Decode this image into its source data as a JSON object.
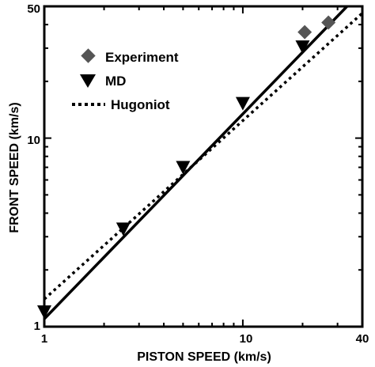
{
  "chart_data": {
    "type": "scatter",
    "xscale": "log",
    "yscale": "log",
    "xlim": [
      1,
      40
    ],
    "ylim": [
      1,
      50
    ],
    "xlabel": "PISTON SPEED (km/s)",
    "ylabel": "FRONT SPEED (km/s)",
    "x_ticks": [
      1,
      10,
      40
    ],
    "y_ticks": [
      1,
      10,
      50
    ],
    "grid": false,
    "legend_position": "top-left",
    "series": [
      {
        "name": "Experiment",
        "kind": "points",
        "marker": "diamond",
        "color": "#555555",
        "x": [
          20.5,
          27.0
        ],
        "y": [
          36.5,
          41.0
        ]
      },
      {
        "name": "MD",
        "kind": "points",
        "marker": "triangle-down",
        "color": "#000000",
        "x": [
          1.0,
          2.5,
          5.0,
          10.0,
          20.0
        ],
        "y": [
          1.2,
          3.3,
          7.0,
          15.3,
          30.5
        ]
      },
      {
        "name": "Hugoniot",
        "kind": "line",
        "style": "dotted",
        "color": "#000000",
        "x": [
          1.0,
          40.0
        ],
        "y": [
          1.4,
          46.0
        ]
      }
    ],
    "fit_line": {
      "kind": "line",
      "style": "solid",
      "color": "#000000",
      "x": [
        1.0,
        33.5
      ],
      "y": [
        1.1,
        50.0
      ]
    }
  }
}
